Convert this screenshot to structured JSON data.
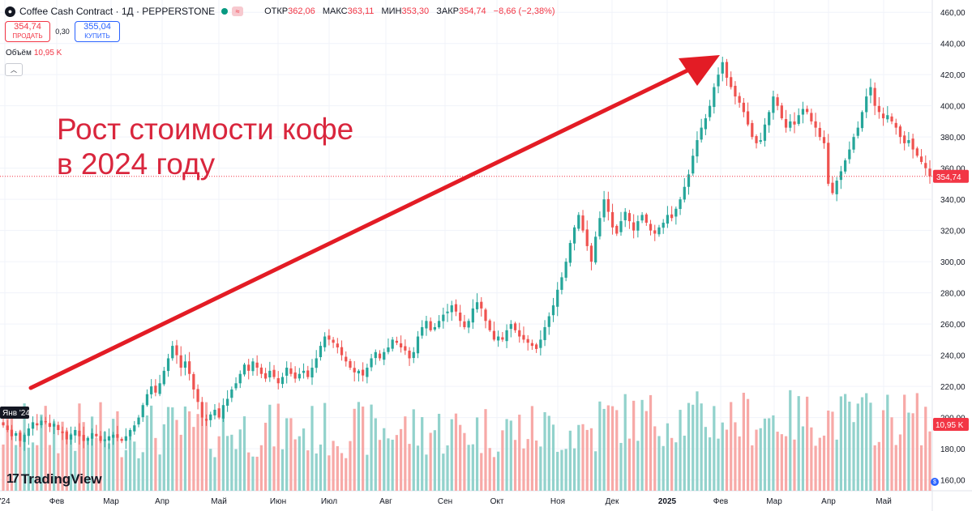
{
  "header": {
    "symbol_icon": "coffee-bean-icon",
    "title": "Coffee Cash Contract · 1Д · PEPPERSTONE",
    "open_label": "ОТКР",
    "open_value": "362,06",
    "high_label": "МАКС",
    "high_value": "363,11",
    "low_label": "МИН",
    "low_value": "353,30",
    "close_label": "ЗАКР",
    "close_value": "354,74",
    "change": "−8,66 (−2,38%)"
  },
  "trade": {
    "sell_price": "354,74",
    "sell_label": "ПРОДАТЬ",
    "spread": "0,30",
    "buy_price": "355,04",
    "buy_label": "КУПИТЬ"
  },
  "volume_legend": {
    "label": "Объём",
    "value": "10,95 K"
  },
  "annotation": {
    "line1": "Рост стоимости кофе",
    "line2": "в 2024 году"
  },
  "branding": {
    "logo_text": "TradingView",
    "logo_icon": "tradingview-logo-icon"
  },
  "colors": {
    "up": "#26a69a",
    "down": "#ef5350",
    "vol_up": "#92d2cc",
    "vol_down": "#f7a9a7",
    "arrow": "#e31c25",
    "annotation": "#d9263d"
  },
  "chart_data": {
    "type": "candlestick",
    "interval": "1D",
    "ylim": [
      152,
      462
    ],
    "y_ticks": [
      "160,00",
      "180,00",
      "200,00",
      "220,00",
      "240,00",
      "260,00",
      "280,00",
      "300,00",
      "320,00",
      "340,00",
      "360,00",
      "380,00",
      "400,00",
      "420,00",
      "440,00",
      "460,00"
    ],
    "x_ticks": [
      "'24",
      "Фев",
      "Мар",
      "Апр",
      "Май",
      "Июн",
      "Июл",
      "Авг",
      "Сен",
      "Окт",
      "Ноя",
      "Дек",
      "2025",
      "Фев",
      "Мар",
      "Апр",
      "Май"
    ],
    "last_price": "354,74",
    "last_volume": "10,95 K",
    "crosshair_date": "Янв '24",
    "closes": [
      195,
      192,
      188,
      190,
      185,
      189,
      193,
      197,
      195,
      198,
      197,
      194,
      196,
      192,
      190,
      186,
      189,
      192,
      188,
      185,
      187,
      190,
      188,
      185,
      186,
      188,
      189,
      187,
      185,
      188,
      192,
      195,
      200,
      208,
      215,
      220,
      216,
      222,
      230,
      238,
      246,
      240,
      232,
      236,
      228,
      218,
      210,
      200,
      198,
      202,
      205,
      200,
      208,
      212,
      218,
      222,
      228,
      234,
      230,
      236,
      232,
      228,
      225,
      230,
      226,
      222,
      226,
      232,
      228,
      225,
      228,
      230,
      226,
      232,
      238,
      246,
      252,
      250,
      248,
      245,
      240,
      236,
      232,
      229,
      230,
      227,
      232,
      238,
      242,
      238,
      242,
      245,
      250,
      248,
      245,
      243,
      238,
      242,
      252,
      258,
      262,
      256,
      258,
      262,
      266,
      268,
      272,
      268,
      262,
      258,
      262,
      270,
      274,
      270,
      262,
      256,
      250,
      252,
      250,
      256,
      260,
      256,
      252,
      250,
      248,
      246,
      244,
      250,
      258,
      265,
      272,
      282,
      290,
      300,
      312,
      322,
      330,
      320,
      310,
      300,
      316,
      328,
      340,
      332,
      322,
      318,
      326,
      332,
      326,
      320,
      326,
      330,
      325,
      320,
      318,
      322,
      325,
      330,
      328,
      334,
      340,
      348,
      356,
      368,
      378,
      386,
      392,
      400,
      412,
      420,
      428,
      418,
      412,
      406,
      402,
      396,
      388,
      380,
      376,
      378,
      388,
      396,
      406,
      400,
      392,
      386,
      390,
      388,
      394,
      398,
      396,
      390,
      386,
      380,
      376,
      350,
      344,
      352,
      358,
      365,
      372,
      380,
      386,
      396,
      406,
      412,
      400,
      396,
      392,
      394,
      390,
      386,
      380,
      376,
      378,
      372,
      368,
      364,
      360,
      354.74
    ]
  }
}
